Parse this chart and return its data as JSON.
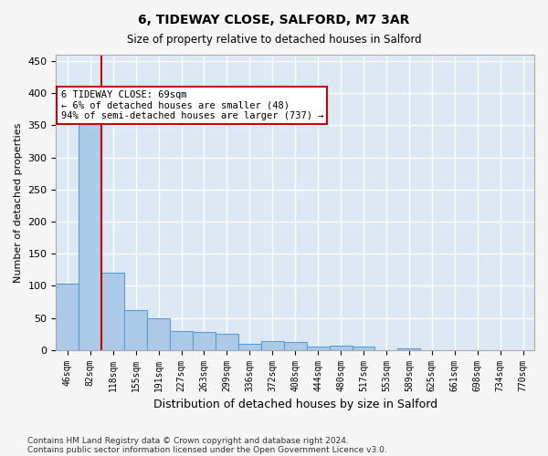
{
  "title1": "6, TIDEWAY CLOSE, SALFORD, M7 3AR",
  "title2": "Size of property relative to detached houses in Salford",
  "xlabel": "Distribution of detached houses by size in Salford",
  "ylabel": "Number of detached properties",
  "categories": [
    "46sqm",
    "82sqm",
    "118sqm",
    "155sqm",
    "191sqm",
    "227sqm",
    "263sqm",
    "299sqm",
    "336sqm",
    "372sqm",
    "408sqm",
    "444sqm",
    "480sqm",
    "517sqm",
    "553sqm",
    "589sqm",
    "625sqm",
    "661sqm",
    "698sqm",
    "734sqm",
    "770sqm"
  ],
  "values": [
    103,
    355,
    120,
    62,
    50,
    30,
    28,
    25,
    10,
    14,
    13,
    5,
    6,
    5,
    0,
    2,
    0,
    0,
    0,
    0,
    0
  ],
  "bar_color": "#adc9e8",
  "bar_edge_color": "#5a9fd4",
  "background_color": "#dce9f5",
  "grid_color": "#ffffff",
  "annotation_box_color": "#ffffff",
  "annotation_border_color": "#cc0000",
  "vline_color": "#cc0000",
  "vline_x": 1.5,
  "annotation_line1": "6 TIDEWAY CLOSE: 69sqm",
  "annotation_line2": "← 6% of detached houses are smaller (48)",
  "annotation_line3": "94% of semi-detached houses are larger (737) →",
  "footnote1": "Contains HM Land Registry data © Crown copyright and database right 2024.",
  "footnote2": "Contains public sector information licensed under the Open Government Licence v3.0.",
  "ylim": [
    0,
    460
  ],
  "yticks": [
    0,
    50,
    100,
    150,
    200,
    250,
    300,
    350,
    400,
    450
  ]
}
